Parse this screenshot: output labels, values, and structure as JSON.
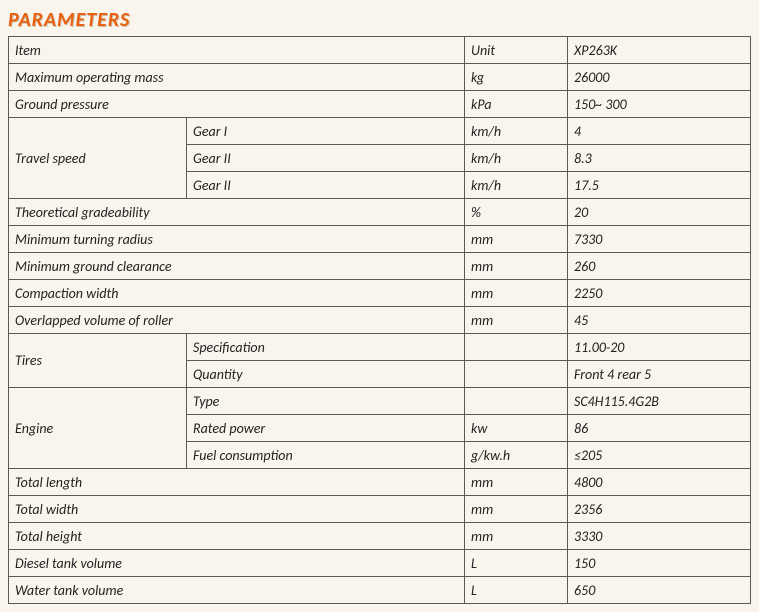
{
  "title": "PARAMETERS",
  "headers": {
    "item": "Item",
    "unit": "Unit",
    "model": "XP263K"
  },
  "rows": [
    {
      "item": "Maximum operating mass",
      "unit": "kg",
      "value": "26000"
    },
    {
      "item": "Ground pressure",
      "unit": "kPa",
      "value": "150~ 300"
    }
  ],
  "travel_speed": {
    "label": "Travel speed",
    "rows": [
      {
        "gear": "Gear I",
        "unit": "km/h",
        "value": "4"
      },
      {
        "gear": "Gear II",
        "unit": "km/h",
        "value": "8.3"
      },
      {
        "gear": "Gear II",
        "unit": "km/h",
        "value": "17.5"
      }
    ]
  },
  "mid_rows": [
    {
      "item": "Theoretical gradeability",
      "unit": "%",
      "value": "20"
    },
    {
      "item": "Minimum turning radius",
      "unit": "mm",
      "value": "7330"
    },
    {
      "item": "Minimum ground clearance",
      "unit": "mm",
      "value": "260"
    },
    {
      "item": "Compaction width",
      "unit": "mm",
      "value": "2250"
    },
    {
      "item": "Overlapped volume of roller",
      "unit": "mm",
      "value": "45"
    }
  ],
  "tires": {
    "label": "Tires",
    "rows": [
      {
        "sub": "Specification",
        "unit": "",
        "value": "11.00-20"
      },
      {
        "sub": "Quantity",
        "unit": "",
        "value": "Front 4 rear 5"
      }
    ]
  },
  "engine": {
    "label": "Engine",
    "rows": [
      {
        "sub": "Type",
        "unit": "",
        "value": "SC4H115.4G2B"
      },
      {
        "sub": "Rated power",
        "unit": "kw",
        "value": "86"
      },
      {
        "sub": "Fuel consumption",
        "unit": "g/kw.h",
        "value": "≤205"
      }
    ]
  },
  "bottom_rows": [
    {
      "item": "Total length",
      "unit": "mm",
      "value": "4800"
    },
    {
      "item": "Total width",
      "unit": "mm",
      "value": "2356"
    },
    {
      "item": "Total height",
      "unit": "mm",
      "value": "3330"
    },
    {
      "item": "Diesel tank volume",
      "unit": "L",
      "value": "150"
    },
    {
      "item": "Water tank volume",
      "unit": "L",
      "value": "650"
    }
  ]
}
